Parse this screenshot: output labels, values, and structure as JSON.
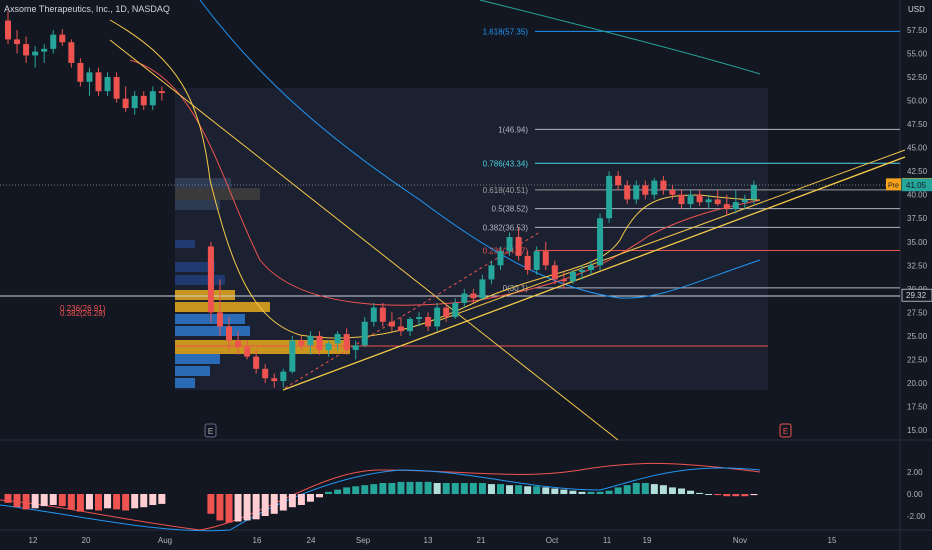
{
  "header": {
    "title": "Axsome Therapeutics, Inc., 1D, NASDAQ",
    "currency": "USD"
  },
  "price_axis": {
    "ticks": [
      "57.50",
      "55.00",
      "52.50",
      "50.00",
      "47.50",
      "45.00",
      "42.50",
      "40.00",
      "37.50",
      "35.00",
      "32.50",
      "30.00",
      "27.50",
      "25.00",
      "22.50",
      "20.00",
      "17.50",
      "15.00"
    ],
    "badges": [
      {
        "text": "41.10",
        "color": "#f7a21b",
        "value": 41.1
      },
      {
        "text": "41.05",
        "color": "#26a69a",
        "value": 41.05
      },
      {
        "text": "29.32",
        "color": "#131722",
        "value": 29.32
      }
    ],
    "pre_label": "Pre"
  },
  "macd_axis": {
    "ticks": [
      "2.00",
      "0.00",
      "-2.00"
    ]
  },
  "time_axis": {
    "ticks": [
      "12",
      "20",
      "Aug",
      "16",
      "24",
      "Sep",
      "13",
      "21",
      "Oct",
      "11",
      "19",
      "Nov",
      "15"
    ]
  },
  "fib_levels": [
    {
      "text": "1.618(57.35)",
      "value": 57.35,
      "color": "#2196f3"
    },
    {
      "text": "1(46.94)",
      "value": 46.94,
      "color": "#b2b5be"
    },
    {
      "text": "0.786(43.34)",
      "value": 43.34,
      "color": "#4dd0e1"
    },
    {
      "text": "0.618(40.51)",
      "value": 40.51,
      "color": "#9e9e9e"
    },
    {
      "text": "0.5(38.52)",
      "value": 38.52,
      "color": "#b2b5be"
    },
    {
      "text": "0.382(36.53)",
      "value": 36.53,
      "color": "#b2b5be"
    },
    {
      "text": "0.236(34.07)",
      "value": 34.07,
      "color": "#ef5350"
    },
    {
      "text": "0(30.1)",
      "value": 30.1,
      "color": "#b2b5be"
    }
  ],
  "left_fib_labels": [
    "0.236(26.91)",
    "0.382(26.28)"
  ],
  "event_markers": [
    "E",
    "E"
  ],
  "chart_data": {
    "type": "candlestick",
    "title": "Axsome Therapeutics, Inc., 1D, NASDAQ",
    "ylim": [
      14.5,
      59.5
    ],
    "x_tick_labels": [
      "12",
      "20",
      "Aug",
      "16",
      "24",
      "Sep",
      "13",
      "21",
      "Oct",
      "11",
      "19",
      "Nov",
      "15"
    ],
    "price_lines": [
      29.32,
      23.9
    ],
    "candles": [
      {
        "o": 58.5,
        "h": 59.5,
        "l": 56.0,
        "c": 56.5
      },
      {
        "o": 56.5,
        "h": 57.5,
        "l": 55.0,
        "c": 56.0
      },
      {
        "o": 56.0,
        "h": 56.8,
        "l": 54.0,
        "c": 54.8
      },
      {
        "o": 54.8,
        "h": 55.8,
        "l": 53.5,
        "c": 55.2
      },
      {
        "o": 55.2,
        "h": 56.0,
        "l": 54.0,
        "c": 55.5
      },
      {
        "o": 55.5,
        "h": 57.5,
        "l": 55.0,
        "c": 57.0
      },
      {
        "o": 57.0,
        "h": 57.6,
        "l": 55.8,
        "c": 56.2
      },
      {
        "o": 56.2,
        "h": 56.5,
        "l": 53.5,
        "c": 54.0
      },
      {
        "o": 54.0,
        "h": 54.5,
        "l": 51.5,
        "c": 52.0
      },
      {
        "o": 52.0,
        "h": 53.5,
        "l": 50.5,
        "c": 53.0
      },
      {
        "o": 53.0,
        "h": 53.5,
        "l": 50.5,
        "c": 51.0
      },
      {
        "o": 51.0,
        "h": 53.0,
        "l": 50.5,
        "c": 52.5
      },
      {
        "o": 52.5,
        "h": 53.0,
        "l": 49.8,
        "c": 50.2
      },
      {
        "o": 50.2,
        "h": 51.5,
        "l": 48.8,
        "c": 49.2
      },
      {
        "o": 49.2,
        "h": 51.0,
        "l": 48.5,
        "c": 50.5
      },
      {
        "o": 50.5,
        "h": 51.0,
        "l": 49.0,
        "c": 49.5
      },
      {
        "o": 49.5,
        "h": 51.5,
        "l": 49.0,
        "c": 51.0
      },
      {
        "o": 51.0,
        "h": 51.5,
        "l": 50.0,
        "c": 50.8
      },
      {
        "o": 34.5,
        "h": 35.0,
        "l": 26.5,
        "c": 27.5
      },
      {
        "o": 27.5,
        "h": 31.0,
        "l": 25.0,
        "c": 26.0
      },
      {
        "o": 26.0,
        "h": 27.0,
        "l": 23.5,
        "c": 24.5
      },
      {
        "o": 24.5,
        "h": 25.5,
        "l": 23.0,
        "c": 23.8
      },
      {
        "o": 23.8,
        "h": 24.5,
        "l": 22.5,
        "c": 22.8
      },
      {
        "o": 22.8,
        "h": 23.5,
        "l": 21.0,
        "c": 21.5
      },
      {
        "o": 21.5,
        "h": 22.0,
        "l": 20.0,
        "c": 20.5
      },
      {
        "o": 20.5,
        "h": 21.0,
        "l": 19.5,
        "c": 20.2
      },
      {
        "o": 20.2,
        "h": 21.5,
        "l": 19.5,
        "c": 21.2
      },
      {
        "o": 21.2,
        "h": 25.0,
        "l": 21.0,
        "c": 24.5
      },
      {
        "o": 24.5,
        "h": 25.0,
        "l": 23.5,
        "c": 24.0
      },
      {
        "o": 24.0,
        "h": 25.5,
        "l": 23.0,
        "c": 25.0
      },
      {
        "o": 25.0,
        "h": 25.5,
        "l": 23.0,
        "c": 23.5
      },
      {
        "o": 23.5,
        "h": 24.5,
        "l": 22.8,
        "c": 24.2
      },
      {
        "o": 24.2,
        "h": 25.5,
        "l": 23.5,
        "c": 25.2
      },
      {
        "o": 25.2,
        "h": 25.8,
        "l": 23.0,
        "c": 23.5
      },
      {
        "o": 23.5,
        "h": 24.5,
        "l": 22.5,
        "c": 24.0
      },
      {
        "o": 24.0,
        "h": 27.0,
        "l": 23.8,
        "c": 26.5
      },
      {
        "o": 26.5,
        "h": 28.5,
        "l": 26.0,
        "c": 28.0
      },
      {
        "o": 28.0,
        "h": 28.5,
        "l": 26.0,
        "c": 26.5
      },
      {
        "o": 26.5,
        "h": 27.5,
        "l": 25.5,
        "c": 26.0
      },
      {
        "o": 26.0,
        "h": 27.0,
        "l": 25.0,
        "c": 25.5
      },
      {
        "o": 25.5,
        "h": 27.0,
        "l": 25.0,
        "c": 26.8
      },
      {
        "o": 26.8,
        "h": 27.5,
        "l": 26.0,
        "c": 27.0
      },
      {
        "o": 27.0,
        "h": 27.5,
        "l": 25.5,
        "c": 26.0
      },
      {
        "o": 26.0,
        "h": 28.5,
        "l": 25.5,
        "c": 28.0
      },
      {
        "o": 28.0,
        "h": 28.5,
        "l": 26.5,
        "c": 27.0
      },
      {
        "o": 27.0,
        "h": 29.0,
        "l": 26.8,
        "c": 28.5
      },
      {
        "o": 28.5,
        "h": 30.0,
        "l": 28.0,
        "c": 29.5
      },
      {
        "o": 29.5,
        "h": 30.0,
        "l": 28.5,
        "c": 29.0
      },
      {
        "o": 29.0,
        "h": 31.5,
        "l": 28.8,
        "c": 31.0
      },
      {
        "o": 31.0,
        "h": 33.0,
        "l": 30.5,
        "c": 32.5
      },
      {
        "o": 32.5,
        "h": 34.5,
        "l": 32.0,
        "c": 34.0
      },
      {
        "o": 34.0,
        "h": 36.0,
        "l": 33.5,
        "c": 35.5
      },
      {
        "o": 35.5,
        "h": 36.5,
        "l": 33.0,
        "c": 33.5
      },
      {
        "o": 33.5,
        "h": 34.0,
        "l": 31.5,
        "c": 32.0
      },
      {
        "o": 32.0,
        "h": 34.5,
        "l": 31.5,
        "c": 34.0
      },
      {
        "o": 34.0,
        "h": 35.0,
        "l": 32.0,
        "c": 32.5
      },
      {
        "o": 32.5,
        "h": 33.0,
        "l": 30.5,
        "c": 31.0
      },
      {
        "o": 31.0,
        "h": 31.8,
        "l": 30.0,
        "c": 30.8
      },
      {
        "o": 30.8,
        "h": 32.0,
        "l": 30.5,
        "c": 31.8
      },
      {
        "o": 31.8,
        "h": 32.5,
        "l": 31.0,
        "c": 32.0
      },
      {
        "o": 32.0,
        "h": 33.0,
        "l": 31.5,
        "c": 32.5
      },
      {
        "o": 32.5,
        "h": 38.0,
        "l": 32.0,
        "c": 37.5
      },
      {
        "o": 37.5,
        "h": 42.5,
        "l": 37.0,
        "c": 42.0
      },
      {
        "o": 42.0,
        "h": 42.5,
        "l": 40.5,
        "c": 41.0
      },
      {
        "o": 41.0,
        "h": 41.5,
        "l": 39.0,
        "c": 39.5
      },
      {
        "o": 39.5,
        "h": 41.5,
        "l": 39.0,
        "c": 41.0
      },
      {
        "o": 41.0,
        "h": 41.5,
        "l": 39.5,
        "c": 40.0
      },
      {
        "o": 40.0,
        "h": 41.8,
        "l": 39.5,
        "c": 41.5
      },
      {
        "o": 41.5,
        "h": 42.0,
        "l": 40.0,
        "c": 40.5
      },
      {
        "o": 40.5,
        "h": 41.0,
        "l": 39.5,
        "c": 40.0
      },
      {
        "o": 40.0,
        "h": 40.5,
        "l": 38.5,
        "c": 39.0
      },
      {
        "o": 39.0,
        "h": 40.5,
        "l": 38.5,
        "c": 40.0
      },
      {
        "o": 40.0,
        "h": 40.5,
        "l": 38.8,
        "c": 39.2
      },
      {
        "o": 39.2,
        "h": 40.0,
        "l": 38.5,
        "c": 39.5
      },
      {
        "o": 39.5,
        "h": 40.5,
        "l": 38.8,
        "c": 39.0
      },
      {
        "o": 39.0,
        "h": 40.0,
        "l": 37.8,
        "c": 38.5
      },
      {
        "o": 38.5,
        "h": 40.5,
        "l": 38.0,
        "c": 39.2
      },
      {
        "o": 39.2,
        "h": 40.0,
        "l": 38.5,
        "c": 39.5
      },
      {
        "o": 39.5,
        "h": 41.5,
        "l": 39.0,
        "c": 41.05
      }
    ],
    "macd_hist": [
      -0.8,
      -1.2,
      -1.4,
      -1.3,
      -1.1,
      -1.0,
      -1.1,
      -1.4,
      -1.6,
      -1.4,
      -1.5,
      -1.3,
      -1.4,
      -1.5,
      -1.3,
      -1.2,
      -1.0,
      -0.9,
      -1.8,
      -2.4,
      -2.6,
      -2.5,
      -2.4,
      -2.3,
      -2.0,
      -1.8,
      -1.5,
      -1.2,
      -1.0,
      -0.7,
      -0.3,
      0.2,
      0.4,
      0.6,
      0.7,
      0.8,
      0.9,
      1.0,
      1.0,
      1.1,
      1.1,
      1.1,
      1.1,
      1.0,
      1.0,
      1.0,
      1.0,
      1.0,
      1.0,
      0.9,
      0.9,
      0.8,
      0.8,
      0.7,
      0.7,
      0.6,
      0.5,
      0.4,
      0.3,
      0.2,
      0.2,
      0.2,
      0.3,
      0.6,
      0.8,
      1.0,
      1.0,
      0.9,
      0.8,
      0.6,
      0.5,
      0.3,
      0.1,
      0.0,
      -0.1,
      -0.2,
      -0.2,
      -0.2,
      -0.1
    ]
  }
}
